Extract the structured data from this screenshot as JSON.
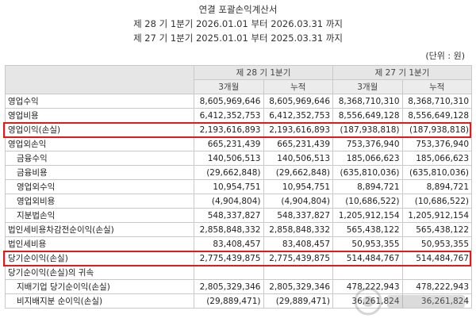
{
  "title": "연결 포괄손익계산서",
  "period_current": "제 28 기 1분기 2026.01.01 부터 2026.03.31 까지",
  "period_prior": "제 27 기 1분기 2025.01.01 부터 2025.03.31 까지",
  "unit": "(단위 : 원)",
  "columns": {
    "group_current": "제 28 기 1분기",
    "group_prior": "제 27 기 1분기",
    "three_month": "3개월",
    "cumulative": "누적"
  },
  "rows": [
    {
      "label": "영업수익",
      "values": [
        "8,605,969,646",
        "8,605,969,646",
        "8,368,710,310",
        "8,368,710,310"
      ],
      "indent": 0
    },
    {
      "label": "영업비용",
      "values": [
        "6,412,352,753",
        "6,412,352,753",
        "8,556,649,128",
        "8,556,649,128"
      ],
      "indent": 0
    },
    {
      "label": "영업이익(손실)",
      "values": [
        "2,193,616,893",
        "2,193,616,893",
        "(187,938,818)",
        "(187,938,818)"
      ],
      "indent": 0,
      "highlight": true
    },
    {
      "label": "영업외손익",
      "values": [
        "665,231,439",
        "665,231,439",
        "753,376,940",
        "753,376,940"
      ],
      "indent": 0
    },
    {
      "label": "금융수익",
      "values": [
        "140,506,513",
        "140,506,513",
        "185,066,623",
        "185,066,623"
      ],
      "indent": 1
    },
    {
      "label": "금융비용",
      "values": [
        "(29,662,848)",
        "(29,662,848)",
        "(635,810,036)",
        "(635,810,036)"
      ],
      "indent": 1
    },
    {
      "label": "영업외수익",
      "values": [
        "10,954,751",
        "10,954,751",
        "8,894,721",
        "8,894,721"
      ],
      "indent": 1
    },
    {
      "label": "영업외비용",
      "values": [
        "(4,904,804)",
        "(4,904,804)",
        "(10,686,522)",
        "(10,686,522)"
      ],
      "indent": 1
    },
    {
      "label": "지분법손익",
      "values": [
        "548,337,827",
        "548,337,827",
        "1,205,912,154",
        "1,205,912,154"
      ],
      "indent": 1
    },
    {
      "label": "법인세비용차감전순이익(손실)",
      "values": [
        "2,858,848,332",
        "2,858,848,332",
        "565,438,122",
        "565,438,122"
      ],
      "indent": 0
    },
    {
      "label": "법인세비용",
      "values": [
        "83,408,457",
        "83,408,457",
        "50,953,355",
        "50,953,355"
      ],
      "indent": 0
    },
    {
      "label": "당기순이익(손실)",
      "values": [
        "2,775,439,875",
        "2,775,439,875",
        "514,484,767",
        "514,484,767"
      ],
      "indent": 0,
      "highlight": true
    },
    {
      "label": "당기순이익(손실)의 귀속",
      "values": [
        "",
        "",
        "",
        ""
      ],
      "indent": 0
    },
    {
      "label": "지배기업 당기순이익(손실)",
      "values": [
        "2,805,329,346",
        "2,805,329,346",
        "478,222,943",
        "478,222,943"
      ],
      "indent": 1
    },
    {
      "label": "비지배지분 순이익(손실)",
      "values": [
        "(29,889,471)",
        "(29,889,471)",
        "36,261,824",
        "36,261,824"
      ],
      "indent": 1
    }
  ],
  "colors": {
    "highlight": "#e01b1b",
    "header_bg": "#e6e6e6",
    "border": "#c9c9c9"
  }
}
